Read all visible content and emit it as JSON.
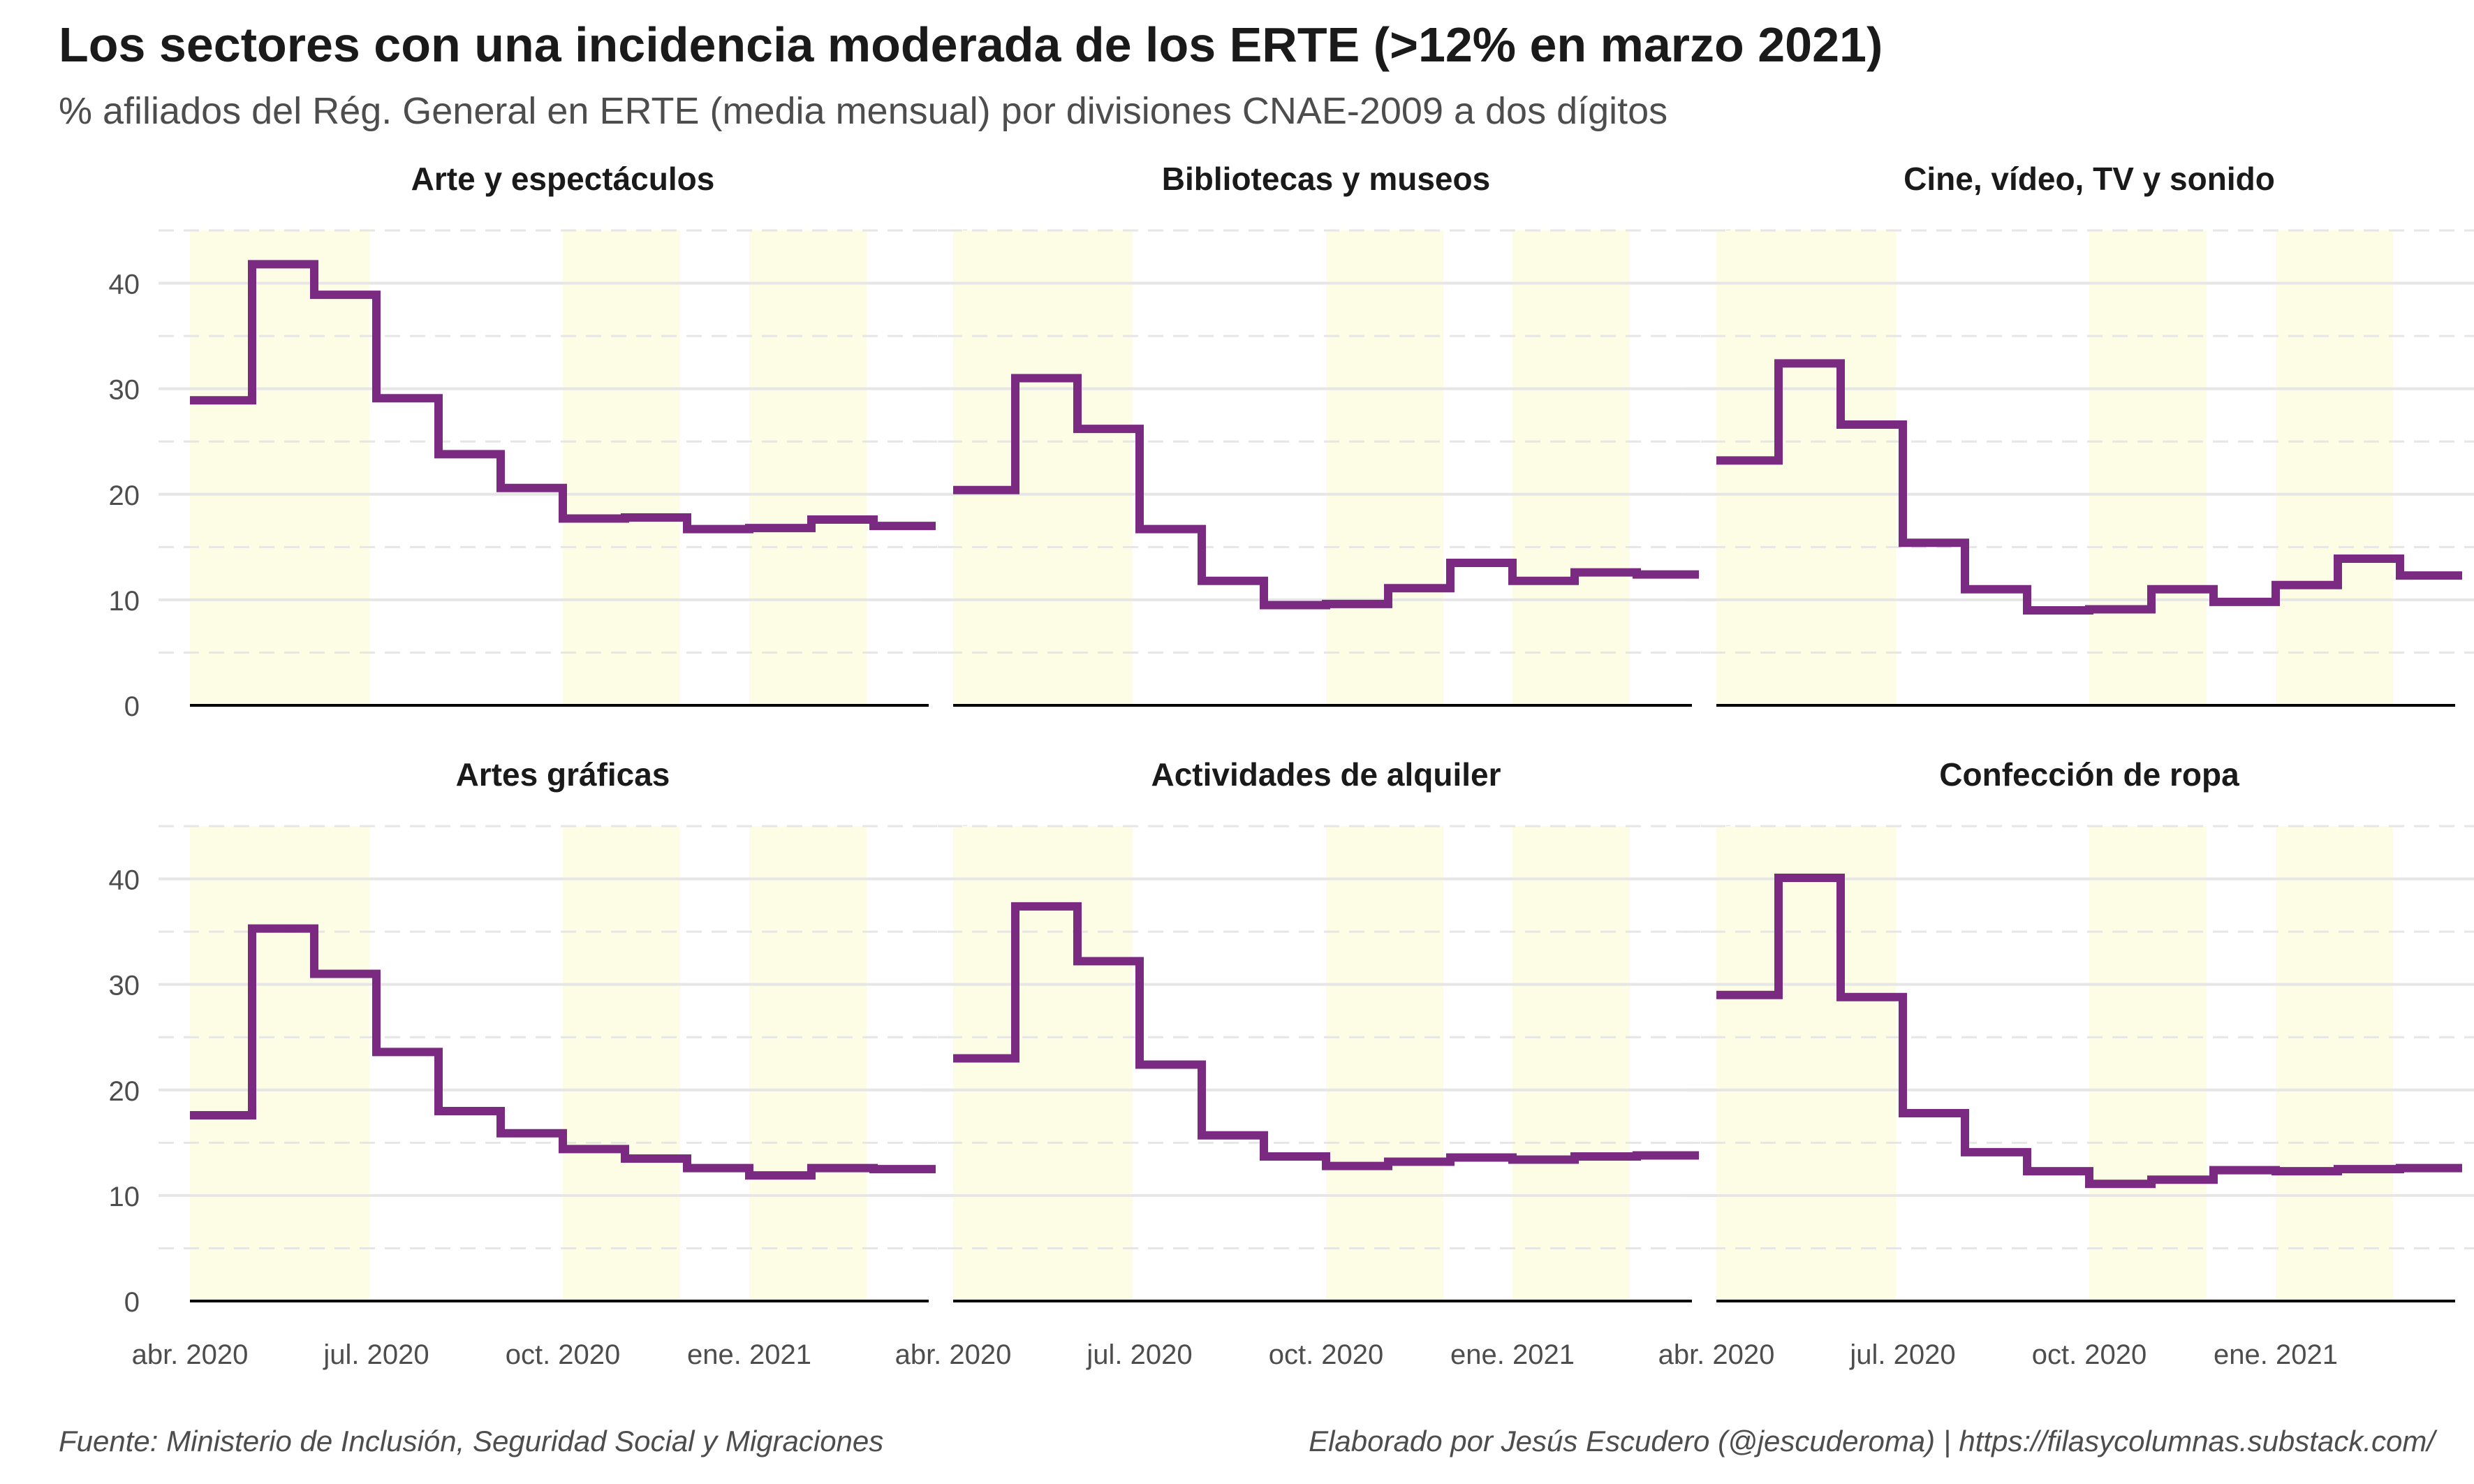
{
  "title": "Los sectores con una incidencia moderada de los ERTE (>12% en marzo 2021)",
  "subtitle": "% afiliados del Rég. General en ERTE (media mensual) por divisiones CNAE-2009 a dos dígitos",
  "caption_left": "Fuente: Ministerio de Inclusión, Seguridad Social y Migraciones",
  "caption_right": "Elaborado por Jesús Escudero (@jescuderoma) | https://filasycolumnas.substack.com/",
  "colors": {
    "line": "#7b2a82",
    "shade": "#fdfde6",
    "grid_major": "#e6e6e6",
    "grid_minor": "#e6e6e6",
    "baseline": "#000000",
    "axis_text": "#4d4d4d"
  },
  "chart_data": {
    "type": "line",
    "step": true,
    "x": [
      "2020-04",
      "2020-05",
      "2020-06",
      "2020-07",
      "2020-08",
      "2020-09",
      "2020-10",
      "2020-11",
      "2020-12",
      "2021-01",
      "2021-02",
      "2021-03"
    ],
    "ylim": [
      0,
      45
    ],
    "y_ticks": [
      0,
      10,
      20,
      30,
      40
    ],
    "x_tick_labels": [
      "abr. 2020",
      "jul. 2020",
      "oct. 2020",
      "ene. 2021"
    ],
    "x_tick_positions": [
      "2020-04",
      "2020-07",
      "2020-10",
      "2021-01"
    ],
    "shaded_periods": [
      [
        "2020-04",
        "2020-06"
      ],
      [
        "2020-10",
        "2020-11"
      ],
      [
        "2021-01",
        "2021-02"
      ]
    ],
    "grid": true,
    "panels": [
      {
        "title": "Arte y espectáculos",
        "values": [
          28.9,
          41.8,
          38.9,
          29.1,
          23.8,
          20.6,
          17.7,
          17.8,
          16.7,
          16.8,
          17.6,
          17.0
        ]
      },
      {
        "title": "Bibliotecas y museos",
        "values": [
          20.4,
          31.0,
          26.2,
          16.7,
          11.8,
          9.5,
          9.6,
          11.1,
          13.5,
          11.8,
          12.6,
          12.4
        ]
      },
      {
        "title": "Cine, vídeo, TV y sonido",
        "values": [
          23.2,
          32.4,
          26.6,
          15.4,
          11.0,
          9.0,
          9.1,
          11.0,
          9.8,
          11.4,
          13.9,
          12.3
        ]
      },
      {
        "title": "Artes gráficas",
        "values": [
          17.6,
          35.3,
          31.0,
          23.6,
          18.0,
          15.9,
          14.4,
          13.5,
          12.6,
          11.9,
          12.6,
          12.5
        ]
      },
      {
        "title": "Actividades de alquiler",
        "values": [
          23.0,
          37.4,
          32.2,
          22.4,
          15.7,
          13.7,
          12.8,
          13.2,
          13.6,
          13.4,
          13.7,
          13.8
        ]
      },
      {
        "title": "Confección de ropa",
        "values": [
          29.0,
          40.1,
          28.8,
          17.8,
          14.1,
          12.3,
          11.1,
          11.5,
          12.4,
          12.3,
          12.5,
          12.6
        ]
      }
    ]
  }
}
